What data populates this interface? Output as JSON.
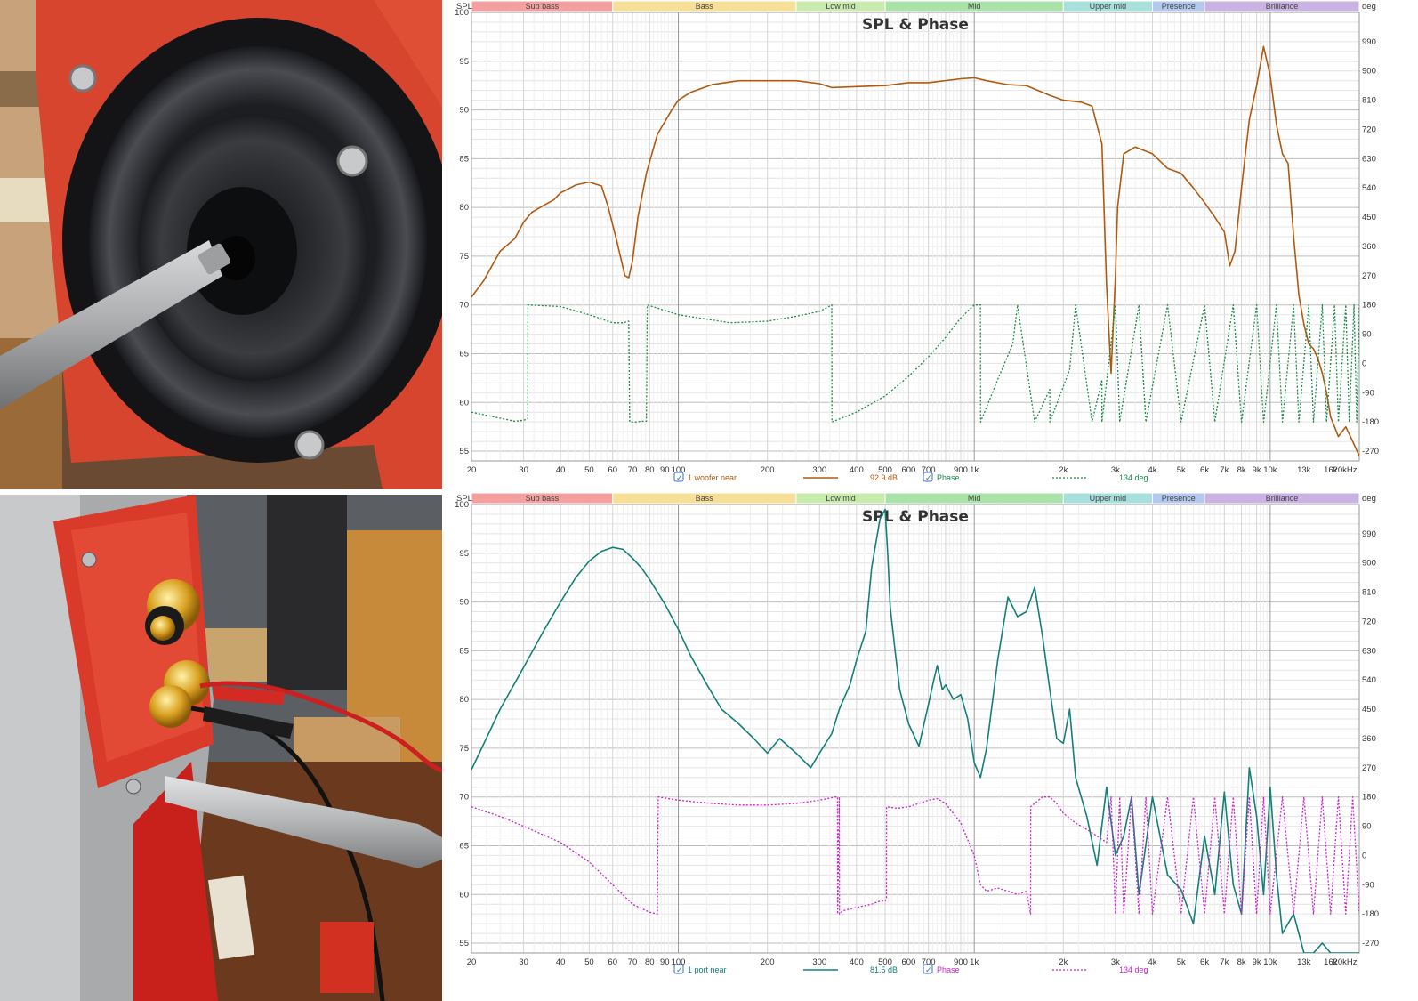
{
  "photos": [
    {
      "subject": "woofer-with-measurement-microphone"
    },
    {
      "subject": "speaker-back-panel-port-with-microphone"
    }
  ],
  "chart_data": [
    {
      "type": "line",
      "title": "SPL & Phase",
      "spl_unit": "SPL",
      "phase_unit": "deg",
      "x_scale": "log",
      "xlim": [
        20,
        20000
      ],
      "ylim": [
        54,
        100
      ],
      "ylim_phase": [
        -300,
        1080
      ],
      "x_ticks": [
        20,
        30,
        40,
        50,
        60,
        70,
        80,
        90,
        100,
        200,
        300,
        400,
        500,
        600,
        700,
        900,
        1000,
        2000,
        3000,
        4000,
        5000,
        6000,
        7000,
        8000,
        9000,
        10000,
        13000,
        16000,
        20000
      ],
      "x_tick_labels": [
        "20",
        "30",
        "40",
        "50",
        "60",
        "70",
        "80",
        "90",
        "100",
        "200",
        "300",
        "400",
        "500",
        "600",
        "700",
        "900",
        "1k",
        "2k",
        "3k",
        "4k",
        "5k",
        "6k",
        "7k",
        "8k",
        "9k",
        "10k",
        "13k",
        "16k",
        "20kHz"
      ],
      "y_ticks": [
        55,
        60,
        65,
        70,
        75,
        80,
        85,
        90,
        95,
        100
      ],
      "phase_ticks": [
        -270,
        -180,
        -90,
        0,
        90,
        180,
        270,
        360,
        450,
        540,
        630,
        720,
        810,
        900,
        990
      ],
      "grid": true,
      "bands": [
        {
          "name": "Sub bass",
          "from": 20,
          "to": 60,
          "color": "#f4a0a0"
        },
        {
          "name": "Bass",
          "from": 60,
          "to": 250,
          "color": "#f8df98"
        },
        {
          "name": "Low mid",
          "from": 250,
          "to": 500,
          "color": "#c9ecae"
        },
        {
          "name": "Mid",
          "from": 500,
          "to": 2000,
          "color": "#a9e3a9"
        },
        {
          "name": "Upper mid",
          "from": 2000,
          "to": 4000,
          "color": "#a8e0dc"
        },
        {
          "name": "Presence",
          "from": 4000,
          "to": 6000,
          "color": "#b4c8f0"
        },
        {
          "name": "Brilliance",
          "from": 6000,
          "to": 20000,
          "color": "#c9b3e3"
        }
      ],
      "legend": {
        "series_name": "1 woofer near",
        "series_value": "92.9 dB",
        "phase_name": "Phase",
        "phase_value": "134 deg"
      },
      "series": [
        {
          "name": "1 woofer near",
          "axis": "spl",
          "color": "#b05a10",
          "x": [
            20,
            22,
            25,
            28,
            30,
            32,
            35,
            38,
            40,
            45,
            50,
            55,
            58,
            62,
            66,
            68,
            70,
            73,
            78,
            85,
            95,
            100,
            110,
            130,
            160,
            200,
            250,
            300,
            330,
            400,
            500,
            600,
            700,
            900,
            1000,
            1100,
            1300,
            1500,
            1800,
            2000,
            2300,
            2500,
            2700,
            2800,
            2900,
            3000,
            3050,
            3200,
            3500,
            4000,
            4500,
            5000,
            5500,
            6000,
            6500,
            7000,
            7300,
            7600,
            8000,
            8500,
            9000,
            9500,
            10000,
            10500,
            11000,
            11500,
            12000,
            12500,
            13000,
            13500,
            14000,
            14500,
            15000,
            15500,
            16000,
            17000,
            18000,
            19000,
            20000
          ],
          "y": [
            70.8,
            72.5,
            75.5,
            76.8,
            78.5,
            79.5,
            80.2,
            80.8,
            81.5,
            82.3,
            82.6,
            82.2,
            80.0,
            76.5,
            73.0,
            72.8,
            74.5,
            79.0,
            83.5,
            87.5,
            90.0,
            91.0,
            91.8,
            92.6,
            93.0,
            93.0,
            93.0,
            92.7,
            92.3,
            92.4,
            92.5,
            92.8,
            92.8,
            93.2,
            93.3,
            93.0,
            92.6,
            92.5,
            91.5,
            91.0,
            90.8,
            90.4,
            86.5,
            72.0,
            63.0,
            73.0,
            80.0,
            85.5,
            86.2,
            85.5,
            84.0,
            83.5,
            82.0,
            80.5,
            79.0,
            77.5,
            74.0,
            75.5,
            82.0,
            89.0,
            92.5,
            96.5,
            93.5,
            88.5,
            85.5,
            84.5,
            77.0,
            71.0,
            68.0,
            66.0,
            65.5,
            64.5,
            63.0,
            61.0,
            58.5,
            56.5,
            57.5,
            56.0,
            54.5
          ]
        },
        {
          "name": "Phase",
          "axis": "phase",
          "color": "#1a8c4a",
          "style": "dotted",
          "x": [
            20,
            24,
            28,
            30,
            31,
            31.01,
            40,
            50,
            60,
            65,
            68,
            68.5,
            72,
            75,
            78,
            78.5,
            100,
            150,
            200,
            250,
            300,
            330,
            330.5,
            400,
            500,
            600,
            700,
            800,
            900,
            1000,
            1050,
            1050.5,
            1200,
            1350,
            1400,
            1600,
            1800,
            1800.5,
            2100,
            2200,
            2500,
            2700,
            2700.5,
            3000,
            3100,
            3100.5,
            3600,
            3800,
            3800.5,
            4500,
            5000,
            5000.5,
            6000,
            6500,
            6500.5,
            7500,
            8000,
            8000.5,
            9000,
            9500,
            9500.5,
            10500,
            11000,
            11000.5,
            12000,
            12500,
            12500.5,
            13500,
            14000,
            14000.5,
            15000,
            15500,
            15500.5,
            16500,
            17000,
            17000.5,
            18000,
            18500,
            18500.5,
            19200,
            19600,
            19600.5,
            20000
          ],
          "y": [
            -150,
            -165,
            -178,
            -175,
            -170,
            180,
            175,
            150,
            125,
            125,
            130,
            -180,
            -180,
            -178,
            -178,
            180,
            150,
            125,
            130,
            145,
            160,
            180,
            -180,
            -150,
            -100,
            -40,
            20,
            80,
            140,
            180,
            180,
            -180,
            -50,
            60,
            180,
            -180,
            -80,
            -180,
            -20,
            180,
            -180,
            -50,
            -180,
            180,
            -180,
            -180,
            180,
            -180,
            -180,
            180,
            -180,
            -180,
            180,
            -180,
            -180,
            180,
            -180,
            -180,
            180,
            -180,
            -180,
            180,
            -180,
            -180,
            180,
            -180,
            -180,
            180,
            -180,
            -180,
            180,
            -180,
            -180,
            180,
            -180,
            -180,
            180,
            -180,
            -180,
            180,
            -180,
            -180,
            180
          ]
        }
      ]
    },
    {
      "type": "line",
      "title": "SPL & Phase",
      "spl_unit": "SPL",
      "phase_unit": "deg",
      "x_scale": "log",
      "xlim": [
        20,
        20000
      ],
      "ylim": [
        54,
        100
      ],
      "ylim_phase": [
        -300,
        1080
      ],
      "x_ticks": [
        20,
        30,
        40,
        50,
        60,
        70,
        80,
        90,
        100,
        200,
        300,
        400,
        500,
        600,
        700,
        900,
        1000,
        2000,
        3000,
        4000,
        5000,
        6000,
        7000,
        8000,
        9000,
        10000,
        13000,
        16000,
        20000
      ],
      "x_tick_labels": [
        "20",
        "30",
        "40",
        "50",
        "60",
        "70",
        "80",
        "90",
        "100",
        "200",
        "300",
        "400",
        "500",
        "600",
        "700",
        "900",
        "1k",
        "2k",
        "3k",
        "4k",
        "5k",
        "6k",
        "7k",
        "8k",
        "9k",
        "10k",
        "13k",
        "16k",
        "20kHz"
      ],
      "y_ticks": [
        55,
        60,
        65,
        70,
        75,
        80,
        85,
        90,
        95,
        100
      ],
      "phase_ticks": [
        -270,
        -180,
        -90,
        0,
        90,
        180,
        270,
        360,
        450,
        540,
        630,
        720,
        810,
        900,
        990
      ],
      "grid": true,
      "bands": [
        {
          "name": "Sub bass",
          "from": 20,
          "to": 60,
          "color": "#f4a0a0"
        },
        {
          "name": "Bass",
          "from": 60,
          "to": 250,
          "color": "#f8df98"
        },
        {
          "name": "Low mid",
          "from": 250,
          "to": 500,
          "color": "#c9ecae"
        },
        {
          "name": "Mid",
          "from": 500,
          "to": 2000,
          "color": "#a9e3a9"
        },
        {
          "name": "Upper mid",
          "from": 2000,
          "to": 4000,
          "color": "#a8e0dc"
        },
        {
          "name": "Presence",
          "from": 4000,
          "to": 6000,
          "color": "#b4c8f0"
        },
        {
          "name": "Brilliance",
          "from": 6000,
          "to": 20000,
          "color": "#c9b3e3"
        }
      ],
      "legend": {
        "series_name": "1 port near",
        "series_value": "81.5 dB",
        "phase_name": "Phase",
        "phase_value": "134 deg"
      },
      "series": [
        {
          "name": "1 port near",
          "axis": "spl",
          "color": "#138078",
          "x": [
            20,
            25,
            30,
            35,
            40,
            45,
            50,
            55,
            60,
            65,
            70,
            75,
            80,
            90,
            100,
            110,
            125,
            140,
            160,
            180,
            200,
            220,
            250,
            280,
            300,
            330,
            350,
            380,
            400,
            430,
            450,
            480,
            500,
            510,
            520,
            540,
            560,
            600,
            650,
            700,
            730,
            750,
            780,
            800,
            850,
            900,
            950,
            1000,
            1050,
            1100,
            1200,
            1300,
            1400,
            1500,
            1600,
            1700,
            1800,
            1900,
            2000,
            2100,
            2200,
            2400,
            2600,
            2800,
            3000,
            3200,
            3400,
            3600,
            4000,
            4500,
            5000,
            5500,
            6000,
            6500,
            7000,
            7500,
            8000,
            8500,
            9000,
            9500,
            10000,
            10500,
            11000,
            12000,
            13000,
            14000,
            15000,
            16000,
            17000,
            18000,
            19000,
            20000
          ],
          "y": [
            72.8,
            79.0,
            83.3,
            87.0,
            90.0,
            92.5,
            94.2,
            95.2,
            95.6,
            95.4,
            94.5,
            93.5,
            92.3,
            89.8,
            87.2,
            84.5,
            81.5,
            79.0,
            77.5,
            76.0,
            74.5,
            76.0,
            74.5,
            73.0,
            74.5,
            76.5,
            79.0,
            81.5,
            84.0,
            87.0,
            93.5,
            98.5,
            99.5,
            95.0,
            89.5,
            85.0,
            81.0,
            77.5,
            75.2,
            79.5,
            82.0,
            83.5,
            81.0,
            81.5,
            80.0,
            80.5,
            78.0,
            73.5,
            72.0,
            75.0,
            84.0,
            90.5,
            88.5,
            89.0,
            91.5,
            86.5,
            81.0,
            76.0,
            75.5,
            79.0,
            72.0,
            68.0,
            63.0,
            71.0,
            64.0,
            66.0,
            70.0,
            60.0,
            70.0,
            62.0,
            60.5,
            57.0,
            66.0,
            60.0,
            70.5,
            61.0,
            58.0,
            73.0,
            68.0,
            60.0,
            71.0,
            62.0,
            56.0,
            58.0,
            54.0,
            54.0,
            55.0,
            54.0,
            54.0,
            54.0,
            54.0,
            54.0
          ]
        },
        {
          "name": "Phase",
          "axis": "phase",
          "color": "#d020d0",
          "style": "dotted",
          "x": [
            20,
            25,
            30,
            40,
            50,
            60,
            70,
            80,
            85,
            85.5,
            100,
            130,
            160,
            200,
            250,
            300,
            340,
            345,
            345.5,
            350,
            350.5,
            360,
            400,
            450,
            480,
            500,
            505,
            505.5,
            550,
            600,
            650,
            700,
            750,
            800,
            900,
            1000,
            1050,
            1100,
            1200,
            1300,
            1400,
            1500,
            1550,
            1550.5,
            1700,
            1800,
            1900,
            2000,
            2200,
            2400,
            2600,
            2800,
            2900,
            3000,
            3100,
            3200,
            3400,
            3600,
            3800,
            4000,
            4500,
            5000,
            5500,
            6000,
            6500,
            7000,
            7500,
            8000,
            8500,
            9000,
            9500,
            10000,
            11000,
            12000,
            13000,
            14000,
            15000,
            16000,
            17000,
            18000,
            19000,
            20000
          ],
          "y": [
            150,
            120,
            90,
            40,
            -20,
            -90,
            -150,
            -175,
            -180,
            180,
            170,
            160,
            155,
            155,
            160,
            170,
            180,
            180,
            -180,
            180,
            -180,
            -170,
            -160,
            -150,
            -140,
            -140,
            -135,
            150,
            145,
            150,
            160,
            170,
            175,
            160,
            100,
            0,
            -90,
            -110,
            -100,
            -110,
            -120,
            -110,
            -180,
            150,
            180,
            180,
            160,
            130,
            100,
            80,
            60,
            40,
            180,
            -180,
            180,
            -180,
            180,
            -180,
            180,
            -180,
            180,
            -180,
            180,
            -180,
            180,
            -180,
            180,
            -180,
            180,
            -180,
            180,
            -180,
            180,
            -180,
            180,
            -180,
            180,
            -180,
            180,
            -180,
            180,
            -180
          ]
        }
      ]
    }
  ]
}
